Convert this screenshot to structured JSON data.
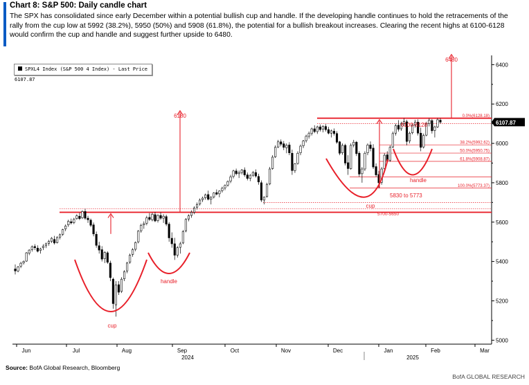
{
  "header": {
    "title": "Chart 8: S&P 500: Daily candle chart",
    "subtitle": "The SPX has consolidated since early December within a potential bullish cup and handle. If the developing handle continues to hold the retracements of the rally from the cup low at 5992 (38.2%), 5950 (50%) and 5908 (61.8%), the potential for a bullish breakout increases. Clearing the recent highs at 6100-6128 would confirm the cup and handle and suggest further upside to 6480."
  },
  "footer": {
    "source_label": "Source:",
    "source_text": "BofA Global Research, Bloomberg",
    "credit": "BofA GLOBAL RESEARCH"
  },
  "colors": {
    "accent": "#0a5bc4",
    "annotation": "#e8202a",
    "candle": "#000000"
  },
  "chart_data": {
    "type": "candlestick",
    "legend": "SPXL4 Index (S&P 500 4 Index) - Last Price 6107.87",
    "last_price_label": "6107.87",
    "last_price": 6107.87,
    "ylim": [
      4980,
      6440
    ],
    "yticks": [
      5000,
      5200,
      5400,
      5600,
      5800,
      6000,
      6200,
      6400
    ],
    "x_axis": {
      "months": [
        "Jun",
        "Jul",
        "Aug",
        "Sep",
        "Oct",
        "Nov",
        "Dec",
        "Jan",
        "Feb",
        "Mar"
      ],
      "years": [
        "2024",
        "2025"
      ]
    },
    "key_prices": [
      {
        "price": 6128,
        "label": "0.0%(6128.18)",
        "style": "solid-thick"
      },
      {
        "price": 6100,
        "label": "",
        "style": "dotted"
      },
      {
        "price": 5992.62,
        "label": "38.2%(5992.62)",
        "style": "thin"
      },
      {
        "price": 5950.75,
        "label": "50.0%(5950.75)",
        "style": "thin"
      },
      {
        "price": 5908.87,
        "label": "61.8%(5908.87)",
        "style": "thin"
      },
      {
        "price": 5830,
        "label": "",
        "style": "thin"
      },
      {
        "price": 5773.37,
        "label": "100.0%(5773.37)",
        "style": "thin"
      },
      {
        "price": 5700,
        "label": "",
        "style": "dotted"
      },
      {
        "price": 5650,
        "label": "",
        "style": "solid-thick"
      }
    ],
    "annotations": {
      "target_2024": "6180",
      "target_2025": "6480",
      "resistance_band": "6100-6128",
      "support_band_1": "5830  to 5773",
      "support_band_2": "5700-5650",
      "cup_2024": "cup",
      "handle_2024": "handle",
      "cup_2025": "cup",
      "handle_2025": "handle"
    },
    "candles": [
      [
        5362,
        5385,
        5334,
        5352
      ],
      [
        5352,
        5377,
        5345,
        5372
      ],
      [
        5376,
        5398,
        5366,
        5391
      ],
      [
        5393,
        5405,
        5384,
        5400
      ],
      [
        5402,
        5448,
        5398,
        5444
      ],
      [
        5442,
        5462,
        5432,
        5458
      ],
      [
        5460,
        5482,
        5450,
        5474
      ],
      [
        5476,
        5488,
        5458,
        5470
      ],
      [
        5468,
        5482,
        5446,
        5452
      ],
      [
        5456,
        5470,
        5440,
        5464
      ],
      [
        5470,
        5488,
        5458,
        5478
      ],
      [
        5480,
        5496,
        5468,
        5490
      ],
      [
        5492,
        5510,
        5480,
        5502
      ],
      [
        5502,
        5524,
        5494,
        5518
      ],
      [
        5512,
        5530,
        5486,
        5494
      ],
      [
        5496,
        5528,
        5492,
        5522
      ],
      [
        5524,
        5542,
        5512,
        5536
      ],
      [
        5538,
        5566,
        5530,
        5562
      ],
      [
        5566,
        5588,
        5554,
        5580
      ],
      [
        5586,
        5612,
        5576,
        5604
      ],
      [
        5602,
        5618,
        5588,
        5596
      ],
      [
        5598,
        5622,
        5590,
        5614
      ],
      [
        5618,
        5640,
        5612,
        5632
      ],
      [
        5630,
        5648,
        5610,
        5618
      ],
      [
        5622,
        5660,
        5616,
        5654
      ],
      [
        5654,
        5668,
        5612,
        5620
      ],
      [
        5620,
        5632,
        5596,
        5612
      ],
      [
        5610,
        5618,
        5575,
        5584
      ],
      [
        5586,
        5598,
        5528,
        5540
      ],
      [
        5538,
        5552,
        5470,
        5482
      ],
      [
        5480,
        5500,
        5440,
        5458
      ],
      [
        5460,
        5478,
        5400,
        5412
      ],
      [
        5414,
        5452,
        5392,
        5446
      ],
      [
        5444,
        5452,
        5388,
        5396
      ],
      [
        5392,
        5404,
        5300,
        5318
      ],
      [
        5310,
        5318,
        5160,
        5186
      ],
      [
        5180,
        5300,
        5120,
        5280
      ],
      [
        5282,
        5300,
        5230,
        5244
      ],
      [
        5248,
        5320,
        5240,
        5310
      ],
      [
        5312,
        5356,
        5300,
        5348
      ],
      [
        5352,
        5398,
        5340,
        5392
      ],
      [
        5396,
        5440,
        5388,
        5432
      ],
      [
        5436,
        5468,
        5424,
        5460
      ],
      [
        5462,
        5502,
        5452,
        5496
      ],
      [
        5500,
        5560,
        5492,
        5554
      ],
      [
        5556,
        5592,
        5546,
        5584
      ],
      [
        5586,
        5604,
        5566,
        5592
      ],
      [
        5594,
        5632,
        5584,
        5622
      ],
      [
        5624,
        5646,
        5606,
        5614
      ],
      [
        5612,
        5648,
        5604,
        5640
      ],
      [
        5638,
        5652,
        5600,
        5606
      ],
      [
        5608,
        5640,
        5598,
        5634
      ],
      [
        5634,
        5650,
        5612,
        5620
      ],
      [
        5620,
        5640,
        5596,
        5630
      ],
      [
        5628,
        5638,
        5580,
        5590
      ],
      [
        5590,
        5600,
        5500,
        5520
      ],
      [
        5518,
        5548,
        5470,
        5490
      ],
      [
        5490,
        5520,
        5408,
        5432
      ],
      [
        5432,
        5478,
        5420,
        5470
      ],
      [
        5472,
        5500,
        5440,
        5490
      ],
      [
        5494,
        5560,
        5488,
        5552
      ],
      [
        5556,
        5620,
        5548,
        5614
      ],
      [
        5616,
        5640,
        5604,
        5632
      ],
      [
        5634,
        5660,
        5622,
        5650
      ],
      [
        5650,
        5680,
        5640,
        5672
      ],
      [
        5676,
        5700,
        5664,
        5690
      ],
      [
        5692,
        5720,
        5684,
        5712
      ],
      [
        5714,
        5730,
        5702,
        5722
      ],
      [
        5724,
        5745,
        5714,
        5738
      ],
      [
        5740,
        5760,
        5710,
        5716
      ],
      [
        5716,
        5732,
        5690,
        5726
      ],
      [
        5728,
        5752,
        5720,
        5748
      ],
      [
        5750,
        5766,
        5736,
        5742
      ],
      [
        5744,
        5762,
        5726,
        5758
      ],
      [
        5760,
        5780,
        5750,
        5772
      ],
      [
        5774,
        5792,
        5762,
        5786
      ],
      [
        5788,
        5812,
        5780,
        5806
      ],
      [
        5808,
        5840,
        5798,
        5830
      ],
      [
        5832,
        5866,
        5822,
        5860
      ],
      [
        5860,
        5872,
        5838,
        5846
      ],
      [
        5846,
        5862,
        5824,
        5852
      ],
      [
        5852,
        5870,
        5842,
        5864
      ],
      [
        5864,
        5878,
        5830,
        5840
      ],
      [
        5840,
        5852,
        5812,
        5822
      ],
      [
        5822,
        5844,
        5808,
        5838
      ],
      [
        5838,
        5860,
        5830,
        5852
      ],
      [
        5852,
        5868,
        5826,
        5834
      ],
      [
        5832,
        5846,
        5790,
        5804
      ],
      [
        5800,
        5812,
        5702,
        5712
      ],
      [
        5712,
        5730,
        5690,
        5728
      ],
      [
        5730,
        5800,
        5724,
        5792
      ],
      [
        5794,
        5880,
        5788,
        5870
      ],
      [
        5872,
        5940,
        5866,
        5930
      ],
      [
        5932,
        5990,
        5926,
        5980
      ],
      [
        5982,
        6018,
        5976,
        6008
      ],
      [
        6008,
        6020,
        5985,
        5996
      ],
      [
        5998,
        6012,
        5966,
        5980
      ],
      [
        5978,
        6000,
        5950,
        5990
      ],
      [
        5992,
        6006,
        5940,
        5952
      ],
      [
        5950,
        5968,
        5840,
        5862
      ],
      [
        5862,
        5900,
        5850,
        5896
      ],
      [
        5898,
        5960,
        5892,
        5950
      ],
      [
        5952,
        5994,
        5940,
        5986
      ],
      [
        5988,
        6018,
        5976,
        6012
      ],
      [
        6014,
        6044,
        6004,
        6036
      ],
      [
        6036,
        6060,
        6024,
        6050
      ],
      [
        6050,
        6080,
        6040,
        6074
      ],
      [
        6074,
        6092,
        6052,
        6060
      ],
      [
        6060,
        6090,
        6048,
        6084
      ],
      [
        6084,
        6096,
        6060,
        6070
      ],
      [
        6072,
        6092,
        6056,
        6086
      ],
      [
        6086,
        6098,
        6060,
        6070
      ],
      [
        6070,
        6084,
        6046,
        6052
      ],
      [
        6052,
        6070,
        6030,
        6064
      ],
      [
        6062,
        6076,
        6040,
        6050
      ],
      [
        6050,
        6062,
        5998,
        6006
      ],
      [
        6008,
        6012,
        5940,
        5950
      ],
      [
        5952,
        6000,
        5942,
        5990
      ],
      [
        5990,
        5998,
        5888,
        5900
      ],
      [
        5902,
        5940,
        5840,
        5872
      ],
      [
        5872,
        6000,
        5866,
        5990
      ],
      [
        5992,
        6018,
        5980,
        6006
      ],
      [
        6006,
        6012,
        5936,
        5948
      ],
      [
        5950,
        5960,
        5830,
        5844
      ],
      [
        5846,
        5880,
        5800,
        5870
      ],
      [
        5870,
        5960,
        5860,
        5950
      ],
      [
        5952,
        6000,
        5940,
        5992
      ],
      [
        5992,
        6010,
        5960,
        5974
      ],
      [
        5976,
        5996,
        5870,
        5880
      ],
      [
        5882,
        5898,
        5830,
        5840
      ],
      [
        5842,
        5860,
        5773,
        5800
      ],
      [
        5802,
        5880,
        5790,
        5870
      ],
      [
        5872,
        5950,
        5860,
        5940
      ],
      [
        5942,
        5960,
        5900,
        5912
      ],
      [
        5914,
        5990,
        5906,
        5980
      ],
      [
        5982,
        6060,
        5976,
        6050
      ],
      [
        6052,
        6100,
        6040,
        6090
      ],
      [
        6092,
        6118,
        6060,
        6072
      ],
      [
        6074,
        6110,
        6064,
        6100
      ],
      [
        6100,
        6128,
        6088,
        6112
      ],
      [
        6110,
        6120,
        5990,
        6010
      ],
      [
        6012,
        6060,
        6000,
        6052
      ],
      [
        6054,
        6102,
        6046,
        6094
      ],
      [
        6094,
        6120,
        6080,
        6108
      ],
      [
        6108,
        6122,
        6040,
        6052
      ],
      [
        6052,
        6080,
        5960,
        5980
      ],
      [
        5982,
        6050,
        5974,
        6040
      ],
      [
        6042,
        6110,
        6036,
        6100
      ],
      [
        6100,
        6128,
        6086,
        6118
      ],
      [
        6116,
        6124,
        6050,
        6064
      ],
      [
        6066,
        6090,
        6030,
        6084
      ],
      [
        6084,
        6128,
        6078,
        6120
      ],
      [
        6118,
        6128,
        6100,
        6108
      ]
    ]
  }
}
